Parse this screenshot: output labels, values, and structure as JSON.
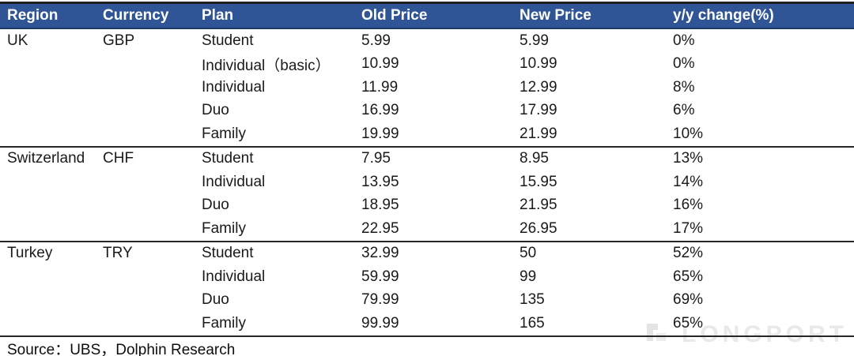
{
  "table": {
    "headers": [
      "Region",
      "Currency",
      "Plan",
      "Old Price",
      "New Price",
      "y/y change(%)"
    ],
    "groups": [
      {
        "region": "UK",
        "currency": "GBP",
        "plans": [
          {
            "plan": "Student",
            "old_price": "5.99",
            "new_price": "5.99",
            "yoy_change": "0%"
          },
          {
            "plan": "Individual（basic）",
            "old_price": "10.99",
            "new_price": "10.99",
            "yoy_change": "0%"
          },
          {
            "plan": "Individual",
            "old_price": "11.99",
            "new_price": "12.99",
            "yoy_change": "8%"
          },
          {
            "plan": "Duo",
            "old_price": "16.99",
            "new_price": "17.99",
            "yoy_change": "6%"
          },
          {
            "plan": "Family",
            "old_price": "19.99",
            "new_price": "21.99",
            "yoy_change": "10%"
          }
        ]
      },
      {
        "region": "Switzerland",
        "currency": "CHF",
        "plans": [
          {
            "plan": "Student",
            "old_price": "7.95",
            "new_price": "8.95",
            "yoy_change": "13%"
          },
          {
            "plan": "Individual",
            "old_price": "13.95",
            "new_price": "15.95",
            "yoy_change": "14%"
          },
          {
            "plan": "Duo",
            "old_price": "18.95",
            "new_price": "21.95",
            "yoy_change": "16%"
          },
          {
            "plan": "Family",
            "old_price": "22.95",
            "new_price": "26.95",
            "yoy_change": "17%"
          }
        ]
      },
      {
        "region": "Turkey",
        "currency": "TRY",
        "plans": [
          {
            "plan": "Student",
            "old_price": "32.99",
            "new_price": "50",
            "yoy_change": "52%"
          },
          {
            "plan": "Individual",
            "old_price": "59.99",
            "new_price": "99",
            "yoy_change": "65%"
          },
          {
            "plan": "Duo",
            "old_price": "79.99",
            "new_price": "135",
            "yoy_change": "69%"
          },
          {
            "plan": "Family",
            "old_price": "99.99",
            "new_price": "165",
            "yoy_change": "65%"
          }
        ]
      }
    ]
  },
  "footer": {
    "source": "Source：UBS，Dolphin Research"
  },
  "watermark": {
    "text": "LONGPORT"
  },
  "colors": {
    "header_bg": "#2f5597",
    "header_border": "#1f3864",
    "top_border": "#1f1f1f",
    "group_separator": "#262626",
    "text": "#1a1a1a",
    "watermark": "#e9e9e9"
  }
}
